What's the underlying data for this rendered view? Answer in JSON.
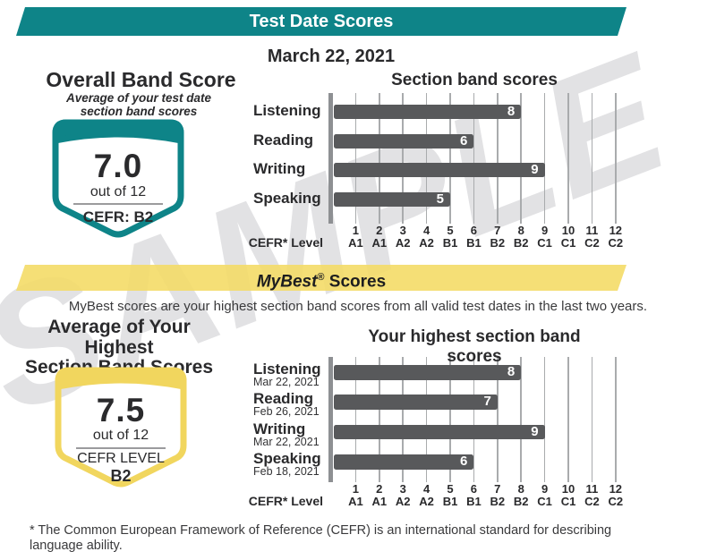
{
  "header": {
    "title": "Test Date Scores"
  },
  "test_date": "March 22, 2021",
  "overall_band": {
    "title": "Overall Band Score",
    "subtitle_line1": "Average of your test date",
    "subtitle_line2": "section band scores",
    "score": "7.0",
    "out_of": "out of 12",
    "cefr": "CEFR: B2"
  },
  "mybest": {
    "banner": {
      "brand": "MyBest",
      "reg": "®",
      "rest": " Scores"
    },
    "description": "MyBest scores are your highest section band scores from all valid test dates in the last two years.",
    "highest_average": {
      "title_line1": "Average of Your Highest",
      "title_line2": "Section Band Scores",
      "score": "7.5",
      "out_of": "out of 12",
      "cefr_label": "CEFR LEVEL",
      "cefr_value": "B2"
    }
  },
  "footnote": "* The Common European Framework of Reference (CEFR) is an international standard for describing language ability.",
  "watermark": "SAMPLE",
  "colors": {
    "teal": "#0E8488",
    "yellow": "#F4DB67",
    "bar_gray": "#58595B",
    "grid_gray": "#A9ABAD",
    "axis_gray": "#8E9093"
  },
  "chart_data": [
    {
      "type": "bar",
      "orientation": "horizontal",
      "title": "Section band scores",
      "categories": [
        "Listening",
        "Reading",
        "Writing",
        "Speaking"
      ],
      "values": [
        8,
        6,
        9,
        5
      ],
      "xlim": [
        0,
        12
      ],
      "x_ticks": [
        1,
        2,
        3,
        4,
        5,
        6,
        7,
        8,
        9,
        10,
        11,
        12
      ],
      "x_tick_cefr": [
        "A1",
        "A1",
        "A2",
        "A2",
        "B1",
        "B1",
        "B2",
        "B2",
        "C1",
        "C1",
        "C2",
        "C2"
      ],
      "xlabel": "CEFR* Level",
      "grid": true,
      "bar_color": "#58595B",
      "value_labels": "inside-end"
    },
    {
      "type": "bar",
      "orientation": "horizontal",
      "title": "Your highest section band scores",
      "categories": [
        "Listening",
        "Reading",
        "Writing",
        "Speaking"
      ],
      "category_dates": [
        "Mar 22, 2021",
        "Feb 26, 2021",
        "Mar 22, 2021",
        "Feb 18, 2021"
      ],
      "values": [
        8,
        7,
        9,
        6
      ],
      "xlim": [
        0,
        12
      ],
      "x_ticks": [
        1,
        2,
        3,
        4,
        5,
        6,
        7,
        8,
        9,
        10,
        11,
        12
      ],
      "x_tick_cefr": [
        "A1",
        "A1",
        "A2",
        "A2",
        "B1",
        "B1",
        "B2",
        "B2",
        "C1",
        "C1",
        "C2",
        "C2"
      ],
      "xlabel": "CEFR* Level",
      "grid": true,
      "bar_color": "#58595B",
      "value_labels": "inside-end"
    }
  ]
}
